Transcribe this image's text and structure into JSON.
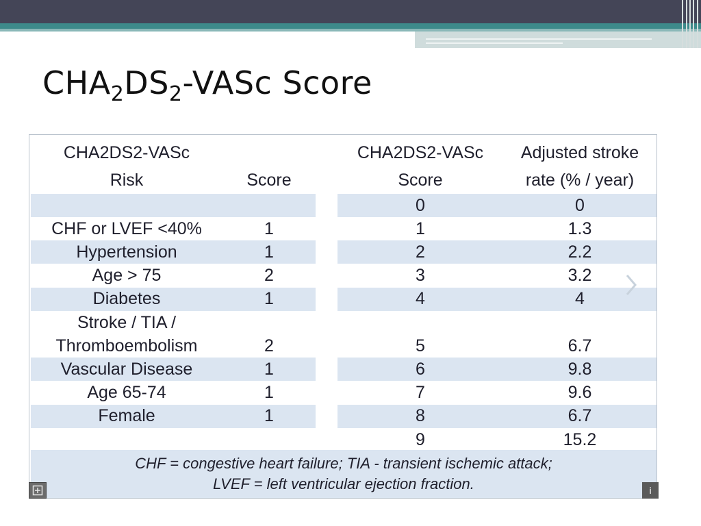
{
  "slide": {
    "title": {
      "main": "CHA",
      "sub1": "2",
      "mid": "DS",
      "sub2": "2",
      "tail": "-VASc Score"
    }
  },
  "left_table": {
    "headers": {
      "risk": "CHA2DS2-VASc\nRisk",
      "score": "Score"
    },
    "rows": [
      {
        "risk": "",
        "score": ""
      },
      {
        "risk": "CHF or LVEF <40%",
        "score": "1"
      },
      {
        "risk": "Hypertension",
        "score": "1"
      },
      {
        "risk": "Age > 75",
        "score": "2"
      },
      {
        "risk": "Diabetes",
        "score": "1"
      },
      {
        "risk": "Stroke / TIA /",
        "score": ""
      },
      {
        "risk": "Thromboembolism",
        "score": "2"
      },
      {
        "risk": "Vascular Disease",
        "score": "1"
      },
      {
        "risk": "Age 65-74",
        "score": "1"
      },
      {
        "risk": "Female",
        "score": "1"
      },
      {
        "risk": "",
        "score": ""
      }
    ]
  },
  "right_table": {
    "headers": {
      "score": "CHA2DS2-VASc\nScore",
      "rate": "Adjusted stroke\nrate (% / year)"
    },
    "rows": [
      {
        "score": "0",
        "rate": "0"
      },
      {
        "score": "1",
        "rate": "1.3"
      },
      {
        "score": "2",
        "rate": "2.2"
      },
      {
        "score": "3",
        "rate": "3.2"
      },
      {
        "score": "4",
        "rate": "4"
      },
      {
        "score": "",
        "rate": ""
      },
      {
        "score": "5",
        "rate": "6.7"
      },
      {
        "score": "6",
        "rate": "9.8"
      },
      {
        "score": "7",
        "rate": "9.6"
      },
      {
        "score": "8",
        "rate": "6.7"
      },
      {
        "score": "9",
        "rate": "15.2"
      }
    ]
  },
  "footnote": {
    "line1": "CHF = congestive heart failure; TIA - transient ischemic attack;",
    "line2": "LVEF = left ventricular ejection fraction."
  },
  "controls": {
    "info_label": "i",
    "expand_icon": "expand-icon",
    "next_icon": "chevron-right-icon"
  },
  "colors": {
    "band": "#dbe5f1",
    "top_bar": "#444557",
    "teal": "#3d8a8a"
  }
}
